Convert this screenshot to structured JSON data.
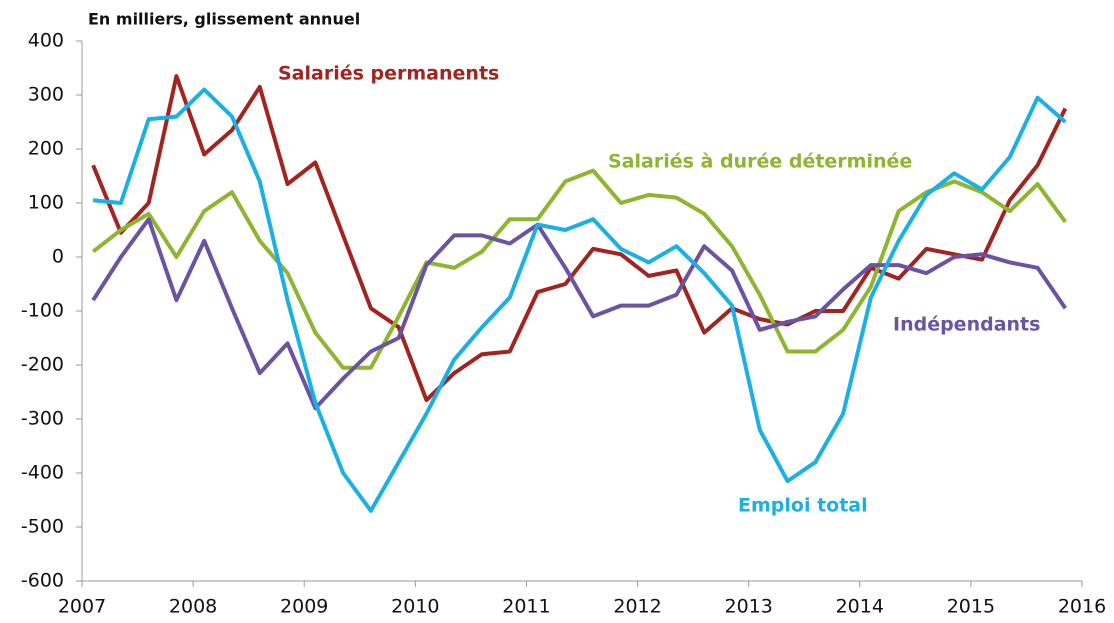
{
  "chart_data": {
    "type": "line",
    "title": "En milliers, glissement annuel",
    "x": [
      2007.1,
      2007.35,
      2007.6,
      2007.85,
      2008.1,
      2008.35,
      2008.6,
      2008.85,
      2009.1,
      2009.35,
      2009.6,
      2009.85,
      2010.1,
      2010.35,
      2010.6,
      2010.85,
      2011.1,
      2011.35,
      2011.6,
      2011.85,
      2012.1,
      2012.35,
      2012.6,
      2012.85,
      2013.1,
      2013.35,
      2013.6,
      2013.85,
      2014.1,
      2014.35,
      2014.6,
      2014.85,
      2015.1,
      2015.35,
      2015.6,
      2015.85
    ],
    "series": [
      {
        "name": "Salariés permanents",
        "color": "#a3231f",
        "values": [
          170,
          45,
          100,
          335,
          190,
          235,
          315,
          135,
          175,
          40,
          -95,
          -130,
          -265,
          -215,
          -180,
          -175,
          -65,
          -50,
          15,
          5,
          -35,
          -25,
          -140,
          -95,
          -115,
          -125,
          -100,
          -100,
          -20,
          -40,
          15,
          5,
          -5,
          105,
          170,
          275
        ]
      },
      {
        "name": "Salariés à durée déterminée",
        "color": "#8db52f",
        "values": [
          10,
          50,
          80,
          0,
          85,
          120,
          30,
          -30,
          -140,
          -205,
          -205,
          -110,
          -10,
          -20,
          10,
          70,
          70,
          140,
          160,
          100,
          115,
          110,
          80,
          20,
          -70,
          -175,
          -175,
          -135,
          -55,
          85,
          120,
          140,
          120,
          85,
          135,
          65
        ]
      },
      {
        "name": "Indépendants",
        "color": "#6a52a5",
        "values": [
          -80,
          0,
          70,
          -80,
          30,
          -95,
          -215,
          -160,
          -280,
          -225,
          -175,
          -150,
          -15,
          40,
          40,
          25,
          60,
          -20,
          -110,
          -90,
          -90,
          -70,
          20,
          -25,
          -135,
          -120,
          -110,
          -60,
          -15,
          -15,
          -30,
          0,
          5,
          -10,
          -20,
          -95
        ]
      },
      {
        "name": "Emploi total",
        "color": "#1ab0e6",
        "values": [
          105,
          100,
          255,
          260,
          310,
          260,
          140,
          -80,
          -270,
          -400,
          -470,
          -380,
          -290,
          -190,
          -130,
          -75,
          60,
          50,
          70,
          15,
          -10,
          20,
          -30,
          -90,
          -320,
          -415,
          -380,
          -290,
          -75,
          30,
          115,
          155,
          125,
          185,
          295,
          250
        ]
      }
    ],
    "xlim": [
      2007,
      2016
    ],
    "xticks": [
      2007,
      2008,
      2009,
      2010,
      2011,
      2012,
      2013,
      2014,
      2015,
      2016
    ],
    "ylim": [
      -600,
      400
    ],
    "yticks": [
      -600,
      -500,
      -400,
      -300,
      -200,
      -100,
      0,
      100,
      200,
      300,
      400
    ]
  }
}
